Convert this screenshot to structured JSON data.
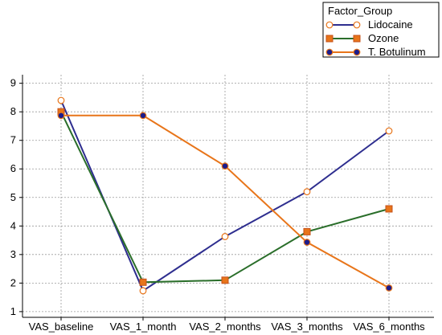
{
  "chart_data": {
    "type": "line",
    "categories": [
      "VAS_baseline",
      "VAS_1_month",
      "VAS_2_months",
      "VAS_3_months",
      "VAS_6_months"
    ],
    "ylim": [
      0.8,
      9.3
    ],
    "yticks": [
      1,
      2,
      3,
      4,
      5,
      6,
      7,
      8,
      9
    ],
    "grid": true,
    "legend": {
      "title": "Factor_Group",
      "placement": "top-right"
    },
    "series": [
      {
        "name": "Lidocaine",
        "values": [
          8.4,
          1.73,
          3.63,
          5.2,
          7.33
        ],
        "line_color": "#2e2e8f",
        "marker": "circle",
        "marker_fill": "#ffffff",
        "marker_stroke": "#e8751a"
      },
      {
        "name": "Ozone",
        "values": [
          8.0,
          2.03,
          2.1,
          3.8,
          4.6
        ],
        "line_color": "#2a6e2a",
        "marker": "square",
        "marker_fill": "#e8751a",
        "marker_stroke": "#c4501a"
      },
      {
        "name": "T. Botulinum",
        "values": [
          7.87,
          7.87,
          6.1,
          3.43,
          1.83
        ],
        "line_color": "#e8751a",
        "marker": "circle",
        "marker_fill": "#1c1c8c",
        "marker_stroke": "#e8751a"
      }
    ]
  }
}
